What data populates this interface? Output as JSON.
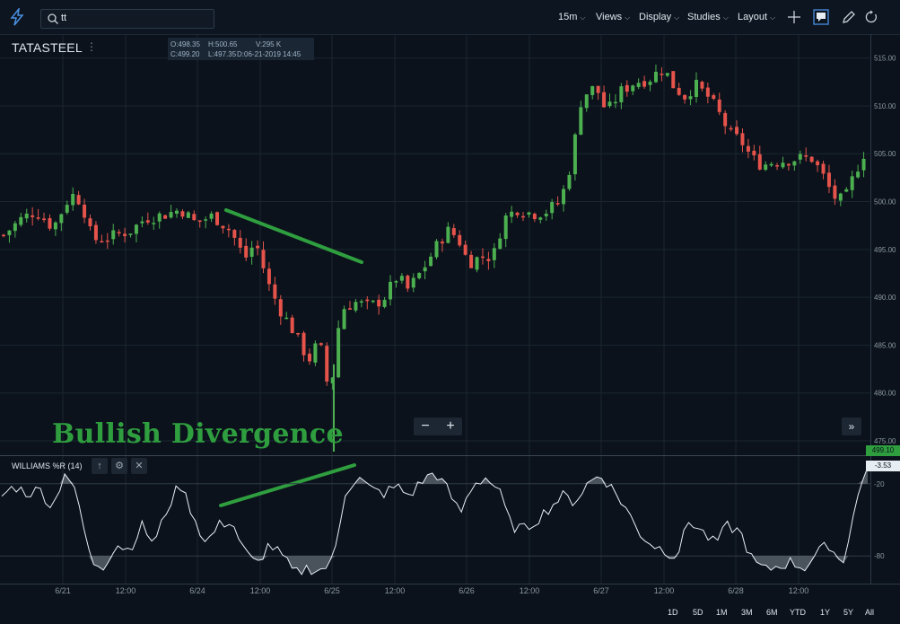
{
  "toolbar": {
    "search_value": "tt",
    "interval": "15m",
    "views": "Views",
    "display": "Display",
    "studies": "Studies",
    "layout": "Layout"
  },
  "symbol": "TATASTEEL",
  "ohlc": {
    "open": "O:498.35",
    "high": "H:500.65",
    "volume": "V:295 K",
    "close": "C:499.20",
    "low": "L:497.35",
    "date": "D:06-21-2019 14:45"
  },
  "annotation": "Bullish Divergence",
  "indicator": {
    "label": "WILLIAMS %R (14)",
    "value_tag": "-3.53"
  },
  "price_tag": "499.10",
  "range_buttons": [
    "1D",
    "5D",
    "1M",
    "3M",
    "6M",
    "YTD",
    "1Y",
    "5Y",
    "All"
  ],
  "colors": {
    "up": "#4caf50",
    "down": "#e5534b",
    "annotation": "#2f9e3f",
    "background": "#0b121b"
  },
  "chart_data": {
    "type": "candlestick",
    "price_axis": {
      "ticks": [
        "515.00",
        "510.00",
        "505.00",
        "500.00",
        "495.00",
        "490.00",
        "485.00",
        "480.00",
        "475.00"
      ],
      "ylim": [
        473.5,
        517.5
      ]
    },
    "time_axis": [
      "6/21",
      "12:00",
      "6/24",
      "12:00",
      "6/25",
      "12:00",
      "6/26",
      "12:00",
      "6/27",
      "12:00",
      "6/28",
      "12:00"
    ],
    "close_path": [
      [
        0,
        496.5
      ],
      [
        10,
        498.2
      ],
      [
        18,
        499.0
      ],
      [
        28,
        497.3
      ],
      [
        38,
        500.8
      ],
      [
        44,
        500.0
      ],
      [
        50,
        496.0
      ],
      [
        60,
        496.3
      ],
      [
        72,
        497.0
      ],
      [
        80,
        498.3
      ],
      [
        90,
        498.6
      ],
      [
        100,
        499.2
      ],
      [
        108,
        497.8
      ],
      [
        118,
        498.5
      ],
      [
        128,
        497.0
      ],
      [
        136,
        494.0
      ],
      [
        142,
        495.8
      ],
      [
        150,
        491.0
      ],
      [
        156,
        488.7
      ],
      [
        164,
        486.3
      ],
      [
        172,
        483.4
      ],
      [
        178,
        485.5
      ],
      [
        184,
        479.5
      ],
      [
        190,
        488.7
      ],
      [
        198,
        489.5
      ],
      [
        206,
        489.0
      ],
      [
        214,
        489.8
      ],
      [
        222,
        492.2
      ],
      [
        228,
        490.8
      ],
      [
        236,
        492.8
      ],
      [
        244,
        495.3
      ],
      [
        250,
        497.0
      ],
      [
        256,
        496.3
      ],
      [
        262,
        493.6
      ],
      [
        270,
        494.3
      ],
      [
        276,
        494.2
      ],
      [
        282,
        498.2
      ],
      [
        290,
        499.3
      ],
      [
        298,
        498.7
      ],
      [
        306,
        499.0
      ],
      [
        314,
        500.0
      ],
      [
        320,
        504.0
      ],
      [
        326,
        511.0
      ],
      [
        334,
        512.0
      ],
      [
        340,
        509.3
      ],
      [
        348,
        511.5
      ],
      [
        356,
        512.5
      ],
      [
        364,
        512.8
      ],
      [
        372,
        514.0
      ],
      [
        378,
        512.0
      ],
      [
        384,
        511.0
      ],
      [
        390,
        512.2
      ],
      [
        398,
        510.8
      ],
      [
        404,
        509.0
      ],
      [
        410,
        507.0
      ],
      [
        416,
        506.3
      ],
      [
        422,
        504.5
      ],
      [
        428,
        503.8
      ],
      [
        434,
        504.2
      ],
      [
        440,
        504.3
      ],
      [
        448,
        504.5
      ],
      [
        456,
        504.5
      ],
      [
        462,
        502.7
      ],
      [
        468,
        500.5
      ],
      [
        474,
        500.0
      ],
      [
        480,
        503.0
      ],
      [
        485,
        505.0
      ]
    ],
    "williams_r": {
      "ticks": [
        "-20",
        "-80"
      ],
      "ylim": [
        -100,
        0
      ],
      "values": [
        -30,
        -22,
        -28,
        -25,
        -40,
        -8,
        -35,
        -85,
        -88,
        -70,
        -75,
        -55,
        -70,
        -40,
        -20,
        -45,
        -70,
        -55,
        -50,
        -75,
        -88,
        -70,
        -80,
        -95,
        -90,
        -92,
        -85,
        -25,
        -15,
        -25,
        -28,
        -22,
        -30,
        -18,
        -10,
        -25,
        -45,
        -20,
        -15,
        -25,
        -55,
        -58,
        -50,
        -40,
        -30,
        -35,
        -20,
        -12,
        -25,
        -40,
        -60,
        -70,
        -75,
        -80,
        -50,
        -60,
        -70,
        -55,
        -60,
        -85,
        -92,
        -88,
        -85,
        -90,
        -78,
        -70,
        -88,
        -40,
        -3
      ]
    }
  }
}
